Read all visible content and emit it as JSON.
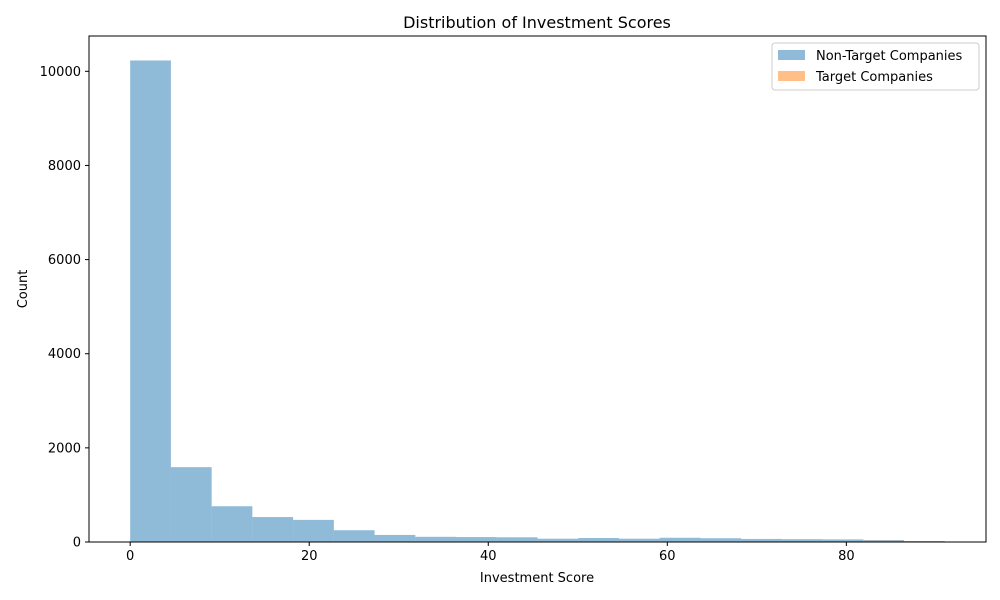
{
  "chart_data": {
    "type": "bar",
    "title": "Distribution of Investment Scores",
    "xlabel": "Investment Score",
    "ylabel": "Count",
    "xlim": [
      -4.6,
      95.6
    ],
    "ylim": [
      0,
      10750
    ],
    "xticks": [
      0,
      20,
      40,
      60,
      80
    ],
    "yticks": [
      0,
      2000,
      4000,
      6000,
      8000,
      10000
    ],
    "legend_position": "top-right",
    "series": [
      {
        "name": "Non-Target Companies",
        "color": "#1f77b4",
        "bins": [
          [
            0,
            4.55,
            10230
          ],
          [
            4.55,
            9.1,
            1590
          ],
          [
            9.1,
            13.65,
            760
          ],
          [
            13.65,
            18.2,
            530
          ],
          [
            18.2,
            22.75,
            470
          ],
          [
            22.75,
            27.3,
            250
          ],
          [
            27.3,
            31.85,
            150
          ],
          [
            31.85,
            36.4,
            110
          ],
          [
            36.4,
            40.95,
            105
          ],
          [
            40.95,
            45.5,
            100
          ],
          [
            45.5,
            50.05,
            70
          ],
          [
            50.05,
            54.6,
            85
          ],
          [
            54.6,
            59.15,
            70
          ],
          [
            59.15,
            63.7,
            90
          ],
          [
            63.7,
            68.25,
            80
          ],
          [
            68.25,
            72.8,
            65
          ],
          [
            72.8,
            77.35,
            60
          ],
          [
            77.35,
            81.9,
            55
          ],
          [
            81.9,
            86.45,
            40
          ],
          [
            86.45,
            91,
            15
          ]
        ]
      },
      {
        "name": "Target Companies",
        "color": "#ff7f0e",
        "bins": [
          [
            59.15,
            63.7,
            8
          ],
          [
            63.7,
            68.25,
            10
          ],
          [
            68.25,
            72.8,
            14
          ],
          [
            72.8,
            77.35,
            18
          ],
          [
            77.35,
            81.9,
            22
          ],
          [
            81.9,
            86.45,
            26
          ],
          [
            86.45,
            91,
            20
          ]
        ]
      }
    ]
  }
}
